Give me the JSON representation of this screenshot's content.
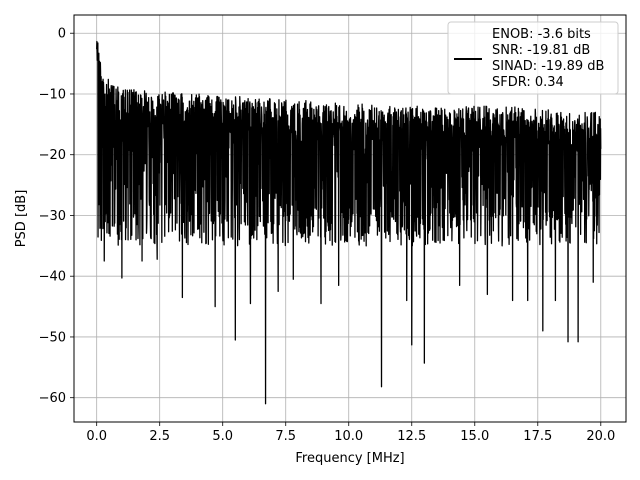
{
  "chart_data": {
    "type": "line",
    "title": "",
    "xlabel": "Frequency [MHz]",
    "ylabel": "PSD [dB]",
    "xlim": [
      -0.9,
      21.0
    ],
    "ylim": [
      -64.0,
      3.0
    ],
    "xticks": [
      0.0,
      2.5,
      5.0,
      7.5,
      10.0,
      12.5,
      15.0,
      17.5,
      20.0
    ],
    "xtick_labels": [
      "0.0",
      "2.5",
      "5.0",
      "7.5",
      "10.0",
      "12.5",
      "15.0",
      "17.5",
      "20.0"
    ],
    "yticks": [
      0,
      -10,
      -20,
      -30,
      -40,
      -50,
      -60
    ],
    "ytick_labels": [
      "0",
      "−10",
      "−20",
      "−30",
      "−40",
      "−50",
      "−60"
    ],
    "grid": true,
    "legend_position": "top-right",
    "series": [
      {
        "name": "ENOB: -3.6 bits\nSNR: -19.81 dB\nSINAD: -19.89 dB\nSFDR: 0.34",
        "color": "#000000",
        "upper_envelope": [
          [
            0.0,
            0
          ],
          [
            0.05,
            -1
          ],
          [
            0.15,
            -4
          ],
          [
            0.3,
            -7
          ],
          [
            0.6,
            -8
          ],
          [
            1.0,
            -9
          ],
          [
            2.0,
            -9.5
          ],
          [
            4.0,
            -10
          ],
          [
            6.0,
            -10.5
          ],
          [
            8.0,
            -11
          ],
          [
            10.0,
            -11.5
          ],
          [
            12.0,
            -12
          ],
          [
            14.0,
            -12
          ],
          [
            16.0,
            -12
          ],
          [
            18.0,
            -12.5
          ],
          [
            20.0,
            -13
          ]
        ],
        "typical_band": [
          -30,
          -14
        ],
        "deep_nulls": [
          [
            0.3,
            -37.5
          ],
          [
            1.0,
            -40.3
          ],
          [
            1.8,
            -37.5
          ],
          [
            2.4,
            -37.2
          ],
          [
            3.4,
            -43.5
          ],
          [
            4.7,
            -45.0
          ],
          [
            5.5,
            -50.5
          ],
          [
            6.1,
            -44.5
          ],
          [
            6.7,
            -61.0
          ],
          [
            7.2,
            -42.5
          ],
          [
            7.8,
            -40.5
          ],
          [
            8.9,
            -44.5
          ],
          [
            9.6,
            -41.5
          ],
          [
            11.3,
            -58.2
          ],
          [
            12.3,
            -44.0
          ],
          [
            12.5,
            -51.3
          ],
          [
            13.0,
            -54.3
          ],
          [
            14.4,
            -41.5
          ],
          [
            15.5,
            -43.0
          ],
          [
            16.5,
            -44.0
          ],
          [
            17.1,
            -44.0
          ],
          [
            17.7,
            -49.0
          ],
          [
            18.2,
            -44.0
          ],
          [
            18.7,
            -50.8
          ],
          [
            19.1,
            -50.8
          ],
          [
            19.7,
            -41.0
          ]
        ]
      }
    ]
  }
}
